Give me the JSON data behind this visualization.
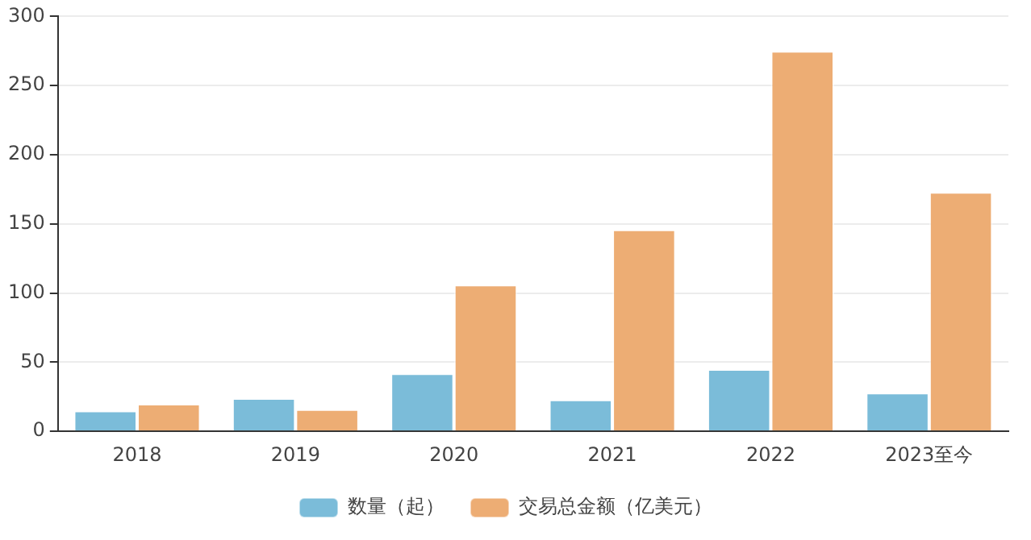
{
  "chart_data": {
    "type": "bar",
    "categories": [
      "2018",
      "2019",
      "2020",
      "2021",
      "2022",
      "2023至今"
    ],
    "series": [
      {
        "name": "数量（起）",
        "color": "#7bbcd9",
        "values": [
          15,
          24,
          42,
          23,
          45,
          28
        ]
      },
      {
        "name": "交易总金额（亿美元）",
        "color": "#edad74",
        "values": [
          20,
          16,
          106,
          146,
          275,
          173
        ]
      }
    ],
    "ylim": [
      0,
      300
    ],
    "yticks": [
      0,
      50,
      100,
      150,
      200,
      250,
      300
    ],
    "grid": "y",
    "legend": "bottom"
  }
}
